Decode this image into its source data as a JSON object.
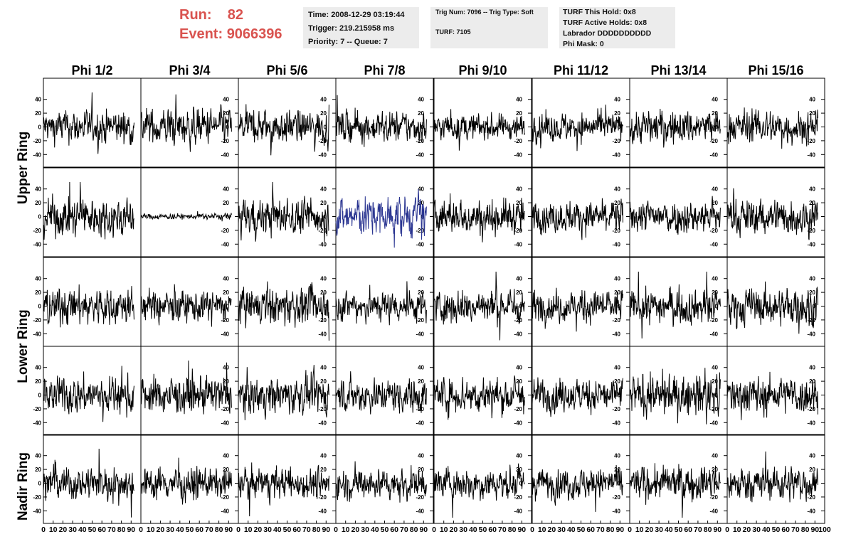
{
  "header": {
    "run_label": "Run:",
    "run_value": "82",
    "event_label": "Event:",
    "event_value": "9066396"
  },
  "info_time": {
    "time": "Time: 2008-12-29 03:19:44",
    "trigger": "Trigger: 219.215958 ms",
    "priority": "Priority: 7 -- Queue: 7"
  },
  "info_trig": {
    "trig": "Trig Num: 7096 -- Trig Type: Soft",
    "turf": "TURF: 7105"
  },
  "info_turf": {
    "hold": "TURF This Hold: 0x8",
    "active": "TURF Active Holds: 0x8",
    "labrador": "Labrador DDDDDDDDDD",
    "phimask": "Phi Mask: 0"
  },
  "colors": {
    "run_text": "#d9534f",
    "trace": "#000000",
    "highlight_trace": "#2a3591",
    "info_bg": "#ececec"
  },
  "chart_data": {
    "type": "line",
    "columns": [
      "Phi 1/2",
      "Phi 3/4",
      "Phi 5/6",
      "Phi 7/8",
      "Phi 9/10",
      "Phi 11/12",
      "Phi 13/14",
      "Phi 15/16"
    ],
    "rows": [
      "Upper Ring",
      "",
      "Lower Ring",
      "",
      "Nadir Ring"
    ],
    "xlim": [
      0,
      100
    ],
    "ylim": [
      -50,
      50
    ],
    "xticks": [
      0,
      10,
      20,
      30,
      40,
      50,
      60,
      70,
      80,
      90,
      100
    ],
    "xtick_labels": [
      "0",
      "10",
      "20",
      "30",
      "40",
      "50",
      "60",
      "70",
      "80",
      "90",
      "100"
    ],
    "yticks": [
      -40,
      -20,
      0,
      20,
      40
    ],
    "ytick_labels": [
      "-40",
      "-20",
      "0",
      "20",
      "40"
    ],
    "samples_per_trace": 260,
    "x_end": 93,
    "amplitudes": [
      [
        12,
        13,
        12,
        11,
        9,
        10,
        12,
        12
      ],
      [
        14,
        2,
        13,
        14,
        12,
        11,
        12,
        13
      ],
      [
        13,
        11,
        13,
        11,
        12,
        11,
        12,
        13
      ],
      [
        13,
        13,
        13,
        12,
        13,
        12,
        14,
        13
      ],
      [
        12,
        11,
        11,
        11,
        11,
        11,
        12,
        12
      ]
    ],
    "highlight": {
      "row": 1,
      "col": 3
    },
    "grid": false,
    "legend": "none"
  }
}
